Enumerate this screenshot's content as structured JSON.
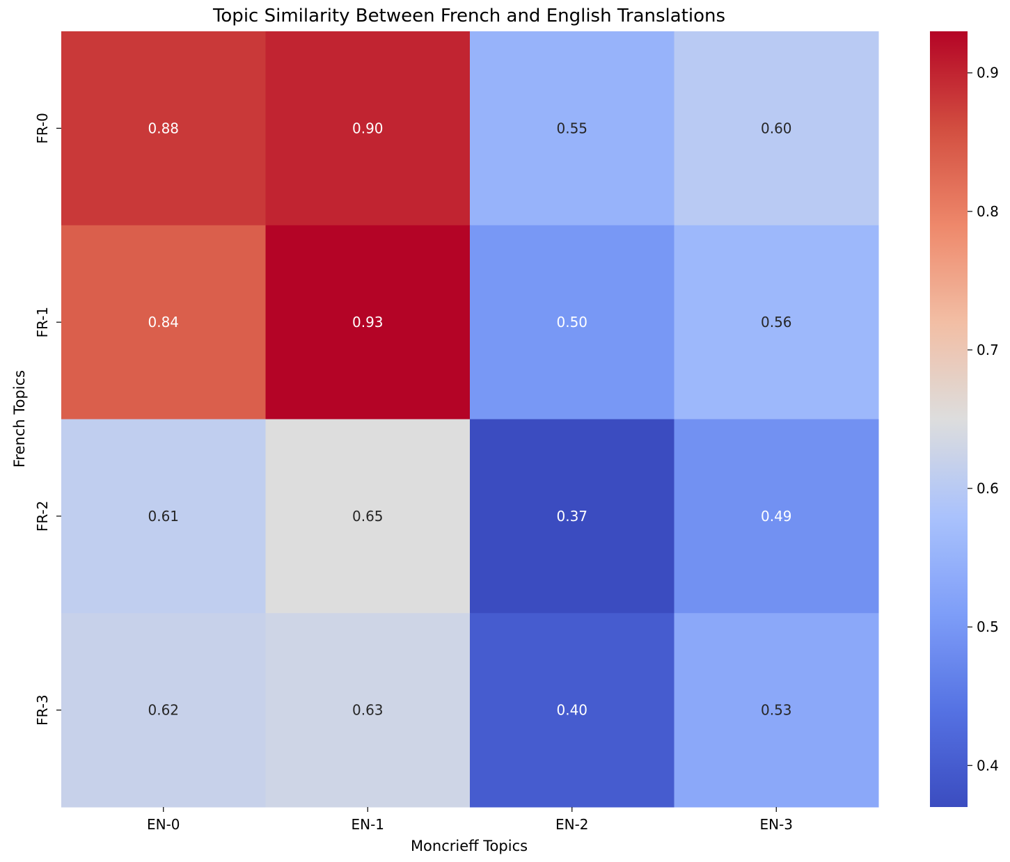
{
  "chart_data": {
    "type": "heatmap",
    "title": "Topic Similarity Between French and English Translations",
    "xlabel": "Moncrieff Topics",
    "ylabel": "French Topics",
    "x_categories": [
      "EN-0",
      "EN-1",
      "EN-2",
      "EN-3"
    ],
    "y_categories": [
      "FR-0",
      "FR-1",
      "FR-2",
      "FR-3"
    ],
    "values": [
      [
        0.88,
        0.9,
        0.55,
        0.6
      ],
      [
        0.84,
        0.93,
        0.5,
        0.56
      ],
      [
        0.61,
        0.65,
        0.37,
        0.49
      ],
      [
        0.62,
        0.63,
        0.4,
        0.53
      ]
    ],
    "value_labels": [
      [
        "0.88",
        "0.90",
        "0.55",
        "0.60"
      ],
      [
        "0.84",
        "0.93",
        "0.50",
        "0.56"
      ],
      [
        "0.61",
        "0.65",
        "0.37",
        "0.49"
      ],
      [
        "0.62",
        "0.63",
        "0.40",
        "0.53"
      ]
    ],
    "colormap": "coolwarm",
    "vmin": 0.37,
    "vmax": 0.93,
    "colorbar": {
      "ticks": [
        0.4,
        0.5,
        0.6,
        0.7,
        0.8,
        0.9
      ],
      "tick_labels": [
        "0.4",
        "0.5",
        "0.6",
        "0.7",
        "0.8",
        "0.9"
      ],
      "placement": "right"
    },
    "grid": false,
    "annotations": true
  }
}
